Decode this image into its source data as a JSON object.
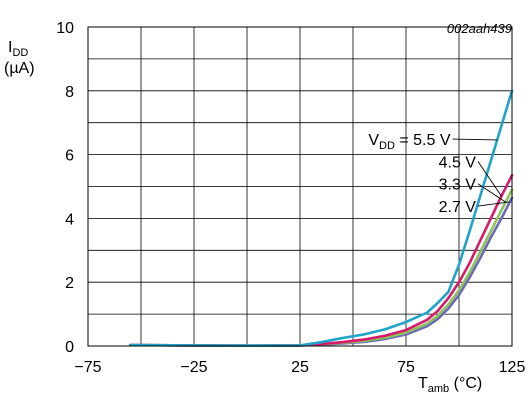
{
  "figure_ref": "002aah439",
  "chart_data": {
    "type": "line",
    "title": "",
    "ylabel": {
      "main": "I",
      "sub": "DD",
      "unit": "(µA)"
    },
    "xlabel": {
      "main": "T",
      "sub": "amb",
      "unit": " (°C)"
    },
    "xlim": [
      -75,
      125
    ],
    "ylim": [
      0,
      10
    ],
    "x_ticks": [
      -75,
      -25,
      25,
      75,
      125
    ],
    "x_tick_labels": [
      "−75",
      "−25",
      "25",
      "75",
      "125"
    ],
    "y_ticks": [
      0,
      2,
      4,
      6,
      8,
      10
    ],
    "y_tick_labels": [
      "0",
      "2",
      "4",
      "6",
      "8",
      "10"
    ],
    "grid": true,
    "series": [
      {
        "name": "5.5 V",
        "label_prefix": {
          "main": "V",
          "sub": "DD",
          "rest": " = "
        },
        "color": "#1fa3c8",
        "x": [
          -55,
          -25,
          0,
          25,
          35,
          45,
          55,
          65,
          75,
          85,
          90,
          95,
          100,
          105,
          110,
          115,
          120,
          125
        ],
        "y": [
          0.03,
          0.02,
          0.01,
          0.02,
          0.12,
          0.25,
          0.36,
          0.52,
          0.75,
          1.05,
          1.35,
          1.7,
          2.55,
          3.6,
          4.7,
          5.8,
          6.9,
          8.0
        ]
      },
      {
        "name": "4.5 V",
        "color": "#d6196b",
        "x": [
          -55,
          -25,
          0,
          25,
          35,
          45,
          55,
          65,
          75,
          85,
          90,
          95,
          100,
          105,
          110,
          115,
          120,
          125
        ],
        "y": [
          0.03,
          0.02,
          0.01,
          0.02,
          0.06,
          0.12,
          0.2,
          0.32,
          0.5,
          0.82,
          1.1,
          1.5,
          2.0,
          2.6,
          3.3,
          4.0,
          4.7,
          5.35
        ]
      },
      {
        "name": "3.3 V",
        "color": "#8cc35a",
        "x": [
          -55,
          -25,
          0,
          25,
          35,
          45,
          55,
          65,
          75,
          85,
          90,
          95,
          100,
          105,
          110,
          115,
          120,
          125
        ],
        "y": [
          0.03,
          0.02,
          0.01,
          0.02,
          0.05,
          0.1,
          0.16,
          0.26,
          0.42,
          0.7,
          0.95,
          1.3,
          1.75,
          2.3,
          2.95,
          3.6,
          4.25,
          4.9
        ]
      },
      {
        "name": "2.7 V",
        "color": "#6b69b8",
        "x": [
          -55,
          -25,
          0,
          25,
          35,
          45,
          55,
          65,
          75,
          85,
          90,
          95,
          100,
          105,
          110,
          115,
          120,
          125
        ],
        "y": [
          0.03,
          0.02,
          0.01,
          0.02,
          0.04,
          0.08,
          0.13,
          0.22,
          0.36,
          0.62,
          0.85,
          1.18,
          1.6,
          2.15,
          2.75,
          3.4,
          4.0,
          4.65
        ]
      }
    ],
    "colors": {
      "grid": "#000000",
      "background": "#ffffff"
    }
  }
}
